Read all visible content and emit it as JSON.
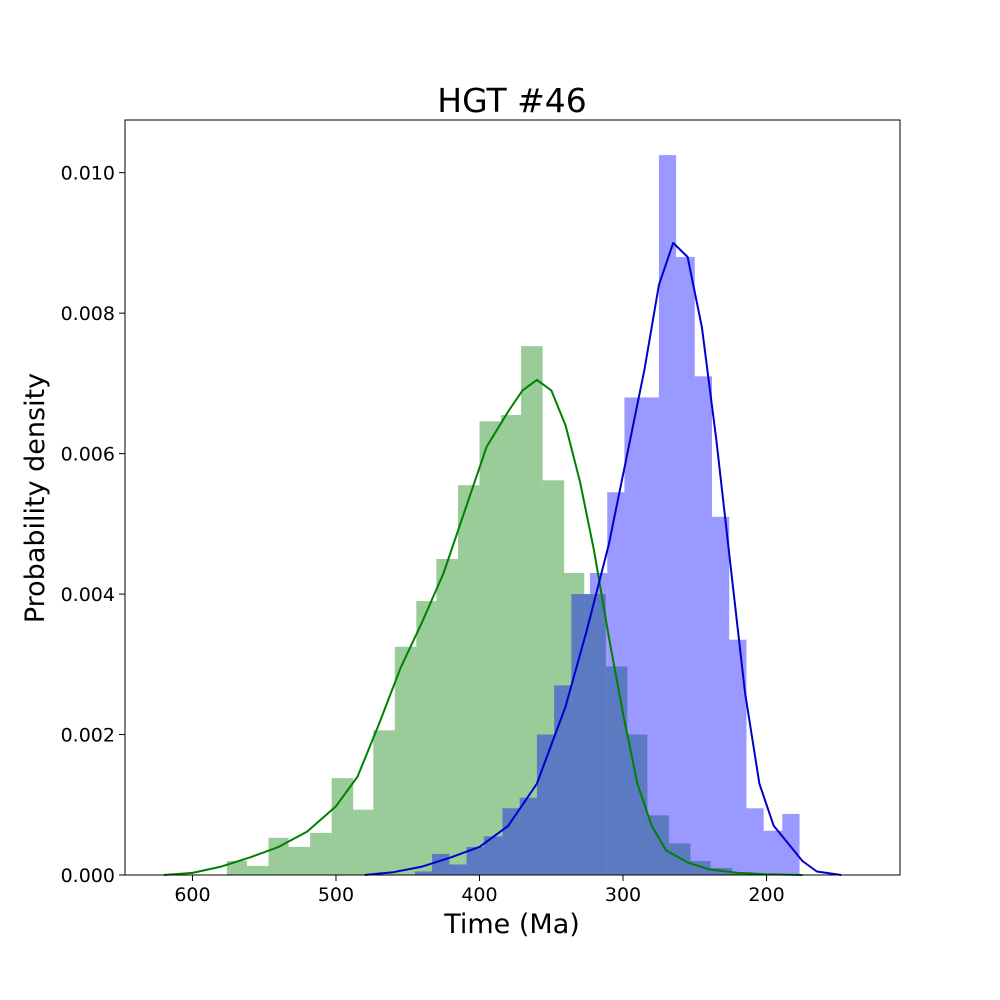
{
  "chart_data": {
    "type": "histogram",
    "title": "HGT #46",
    "xlabel": "Time (Ma)",
    "ylabel": "Probability density",
    "x_inverted": true,
    "xlim": [
      647,
      107
    ],
    "ylim": [
      0,
      0.01075
    ],
    "x_ticks": [
      600,
      500,
      400,
      300,
      200
    ],
    "y_ticks": [
      0.0,
      0.002,
      0.004,
      0.006,
      0.008,
      0.01
    ],
    "y_tick_labels": [
      "0.000",
      "0.002",
      "0.004",
      "0.006",
      "0.008",
      "0.010"
    ],
    "grid": false,
    "legend": "none",
    "series": [
      {
        "color": "#008000",
        "bar_alpha": 0.4,
        "bars": [
          {
            "x0": 576,
            "x1": 562,
            "y": 0.0002
          },
          {
            "x0": 562,
            "x1": 547,
            "y": 0.00013
          },
          {
            "x0": 547,
            "x1": 533,
            "y": 0.00053
          },
          {
            "x0": 533,
            "x1": 518,
            "y": 0.0004
          },
          {
            "x0": 518,
            "x1": 503,
            "y": 0.0006
          },
          {
            "x0": 503,
            "x1": 488,
            "y": 0.00138
          },
          {
            "x0": 488,
            "x1": 474,
            "y": 0.00093
          },
          {
            "x0": 474,
            "x1": 459,
            "y": 0.00206
          },
          {
            "x0": 459,
            "x1": 444,
            "y": 0.00325
          },
          {
            "x0": 444,
            "x1": 430,
            "y": 0.0039
          },
          {
            "x0": 430,
            "x1": 415,
            "y": 0.0045
          },
          {
            "x0": 415,
            "x1": 400,
            "y": 0.00555
          },
          {
            "x0": 400,
            "x1": 385,
            "y": 0.00646
          },
          {
            "x0": 385,
            "x1": 371,
            "y": 0.00655
          },
          {
            "x0": 371,
            "x1": 356,
            "y": 0.00753
          },
          {
            "x0": 356,
            "x1": 341,
            "y": 0.00562
          },
          {
            "x0": 341,
            "x1": 327,
            "y": 0.0043
          },
          {
            "x0": 327,
            "x1": 312,
            "y": 0.004
          },
          {
            "x0": 312,
            "x1": 297,
            "y": 0.00297
          },
          {
            "x0": 297,
            "x1": 283,
            "y": 0.002
          },
          {
            "x0": 283,
            "x1": 268,
            "y": 0.00085
          },
          {
            "x0": 268,
            "x1": 253,
            "y": 0.00045
          },
          {
            "x0": 253,
            "x1": 239,
            "y": 0.0002
          },
          {
            "x0": 239,
            "x1": 224,
            "y": 0.0001
          },
          {
            "x0": 224,
            "x1": 210,
            "y": 4e-05
          }
        ],
        "kde": [
          [
            620,
            0.0
          ],
          [
            600,
            3e-05
          ],
          [
            580,
            0.00012
          ],
          [
            560,
            0.00025
          ],
          [
            540,
            0.0004
          ],
          [
            520,
            0.00062
          ],
          [
            500,
            0.00098
          ],
          [
            485,
            0.0014
          ],
          [
            470,
            0.00215
          ],
          [
            455,
            0.00295
          ],
          [
            440,
            0.0036
          ],
          [
            425,
            0.0043
          ],
          [
            410,
            0.0052
          ],
          [
            395,
            0.0061
          ],
          [
            380,
            0.0066
          ],
          [
            370,
            0.0069
          ],
          [
            360,
            0.00705
          ],
          [
            350,
            0.0069
          ],
          [
            340,
            0.0064
          ],
          [
            330,
            0.0056
          ],
          [
            320,
            0.0046
          ],
          [
            310,
            0.0034
          ],
          [
            300,
            0.0023
          ],
          [
            290,
            0.0013
          ],
          [
            280,
            0.0007
          ],
          [
            270,
            0.00035
          ],
          [
            255,
            0.00018
          ],
          [
            240,
            8e-05
          ],
          [
            220,
            3e-05
          ],
          [
            200,
            1e-05
          ],
          [
            175,
            0.0
          ]
        ]
      },
      {
        "color": "#0000ff",
        "kde_color": "#0000cc",
        "bar_alpha": 0.4,
        "bars": [
          {
            "x0": 445,
            "x1": 433,
            "y": 5e-05
          },
          {
            "x0": 433,
            "x1": 421,
            "y": 0.0003
          },
          {
            "x0": 421,
            "x1": 409,
            "y": 0.00015
          },
          {
            "x0": 409,
            "x1": 397,
            "y": 0.0004
          },
          {
            "x0": 397,
            "x1": 384,
            "y": 0.00055
          },
          {
            "x0": 384,
            "x1": 372,
            "y": 0.00095
          },
          {
            "x0": 372,
            "x1": 360,
            "y": 0.0011
          },
          {
            "x0": 360,
            "x1": 348,
            "y": 0.002
          },
          {
            "x0": 348,
            "x1": 336,
            "y": 0.0027
          },
          {
            "x0": 336,
            "x1": 323,
            "y": 0.004
          },
          {
            "x0": 323,
            "x1": 311,
            "y": 0.0043
          },
          {
            "x0": 311,
            "x1": 299,
            "y": 0.00545
          },
          {
            "x0": 299,
            "x1": 287,
            "y": 0.0068
          },
          {
            "x0": 287,
            "x1": 275,
            "y": 0.0068
          },
          {
            "x0": 275,
            "x1": 263,
            "y": 0.01025
          },
          {
            "x0": 263,
            "x1": 250,
            "y": 0.0088
          },
          {
            "x0": 250,
            "x1": 238,
            "y": 0.0071
          },
          {
            "x0": 238,
            "x1": 226,
            "y": 0.0051
          },
          {
            "x0": 226,
            "x1": 214,
            "y": 0.00335
          },
          {
            "x0": 214,
            "x1": 202,
            "y": 0.00095
          },
          {
            "x0": 202,
            "x1": 189,
            "y": 0.00063
          },
          {
            "x0": 189,
            "x1": 177,
            "y": 0.00087
          }
        ],
        "kde": [
          [
            480,
            0.0
          ],
          [
            460,
            4e-05
          ],
          [
            440,
            0.00012
          ],
          [
            420,
            0.00025
          ],
          [
            400,
            0.0004
          ],
          [
            380,
            0.0007
          ],
          [
            360,
            0.0013
          ],
          [
            340,
            0.0024
          ],
          [
            325,
            0.0035
          ],
          [
            310,
            0.0047
          ],
          [
            295,
            0.0062
          ],
          [
            285,
            0.0072
          ],
          [
            275,
            0.0084
          ],
          [
            265,
            0.009
          ],
          [
            255,
            0.0088
          ],
          [
            245,
            0.0078
          ],
          [
            235,
            0.0062
          ],
          [
            225,
            0.0044
          ],
          [
            215,
            0.0026
          ],
          [
            205,
            0.0013
          ],
          [
            195,
            0.0007
          ],
          [
            185,
            0.00045
          ],
          [
            175,
            0.0002
          ],
          [
            165,
            5e-05
          ],
          [
            148,
            0.0
          ]
        ]
      }
    ]
  }
}
